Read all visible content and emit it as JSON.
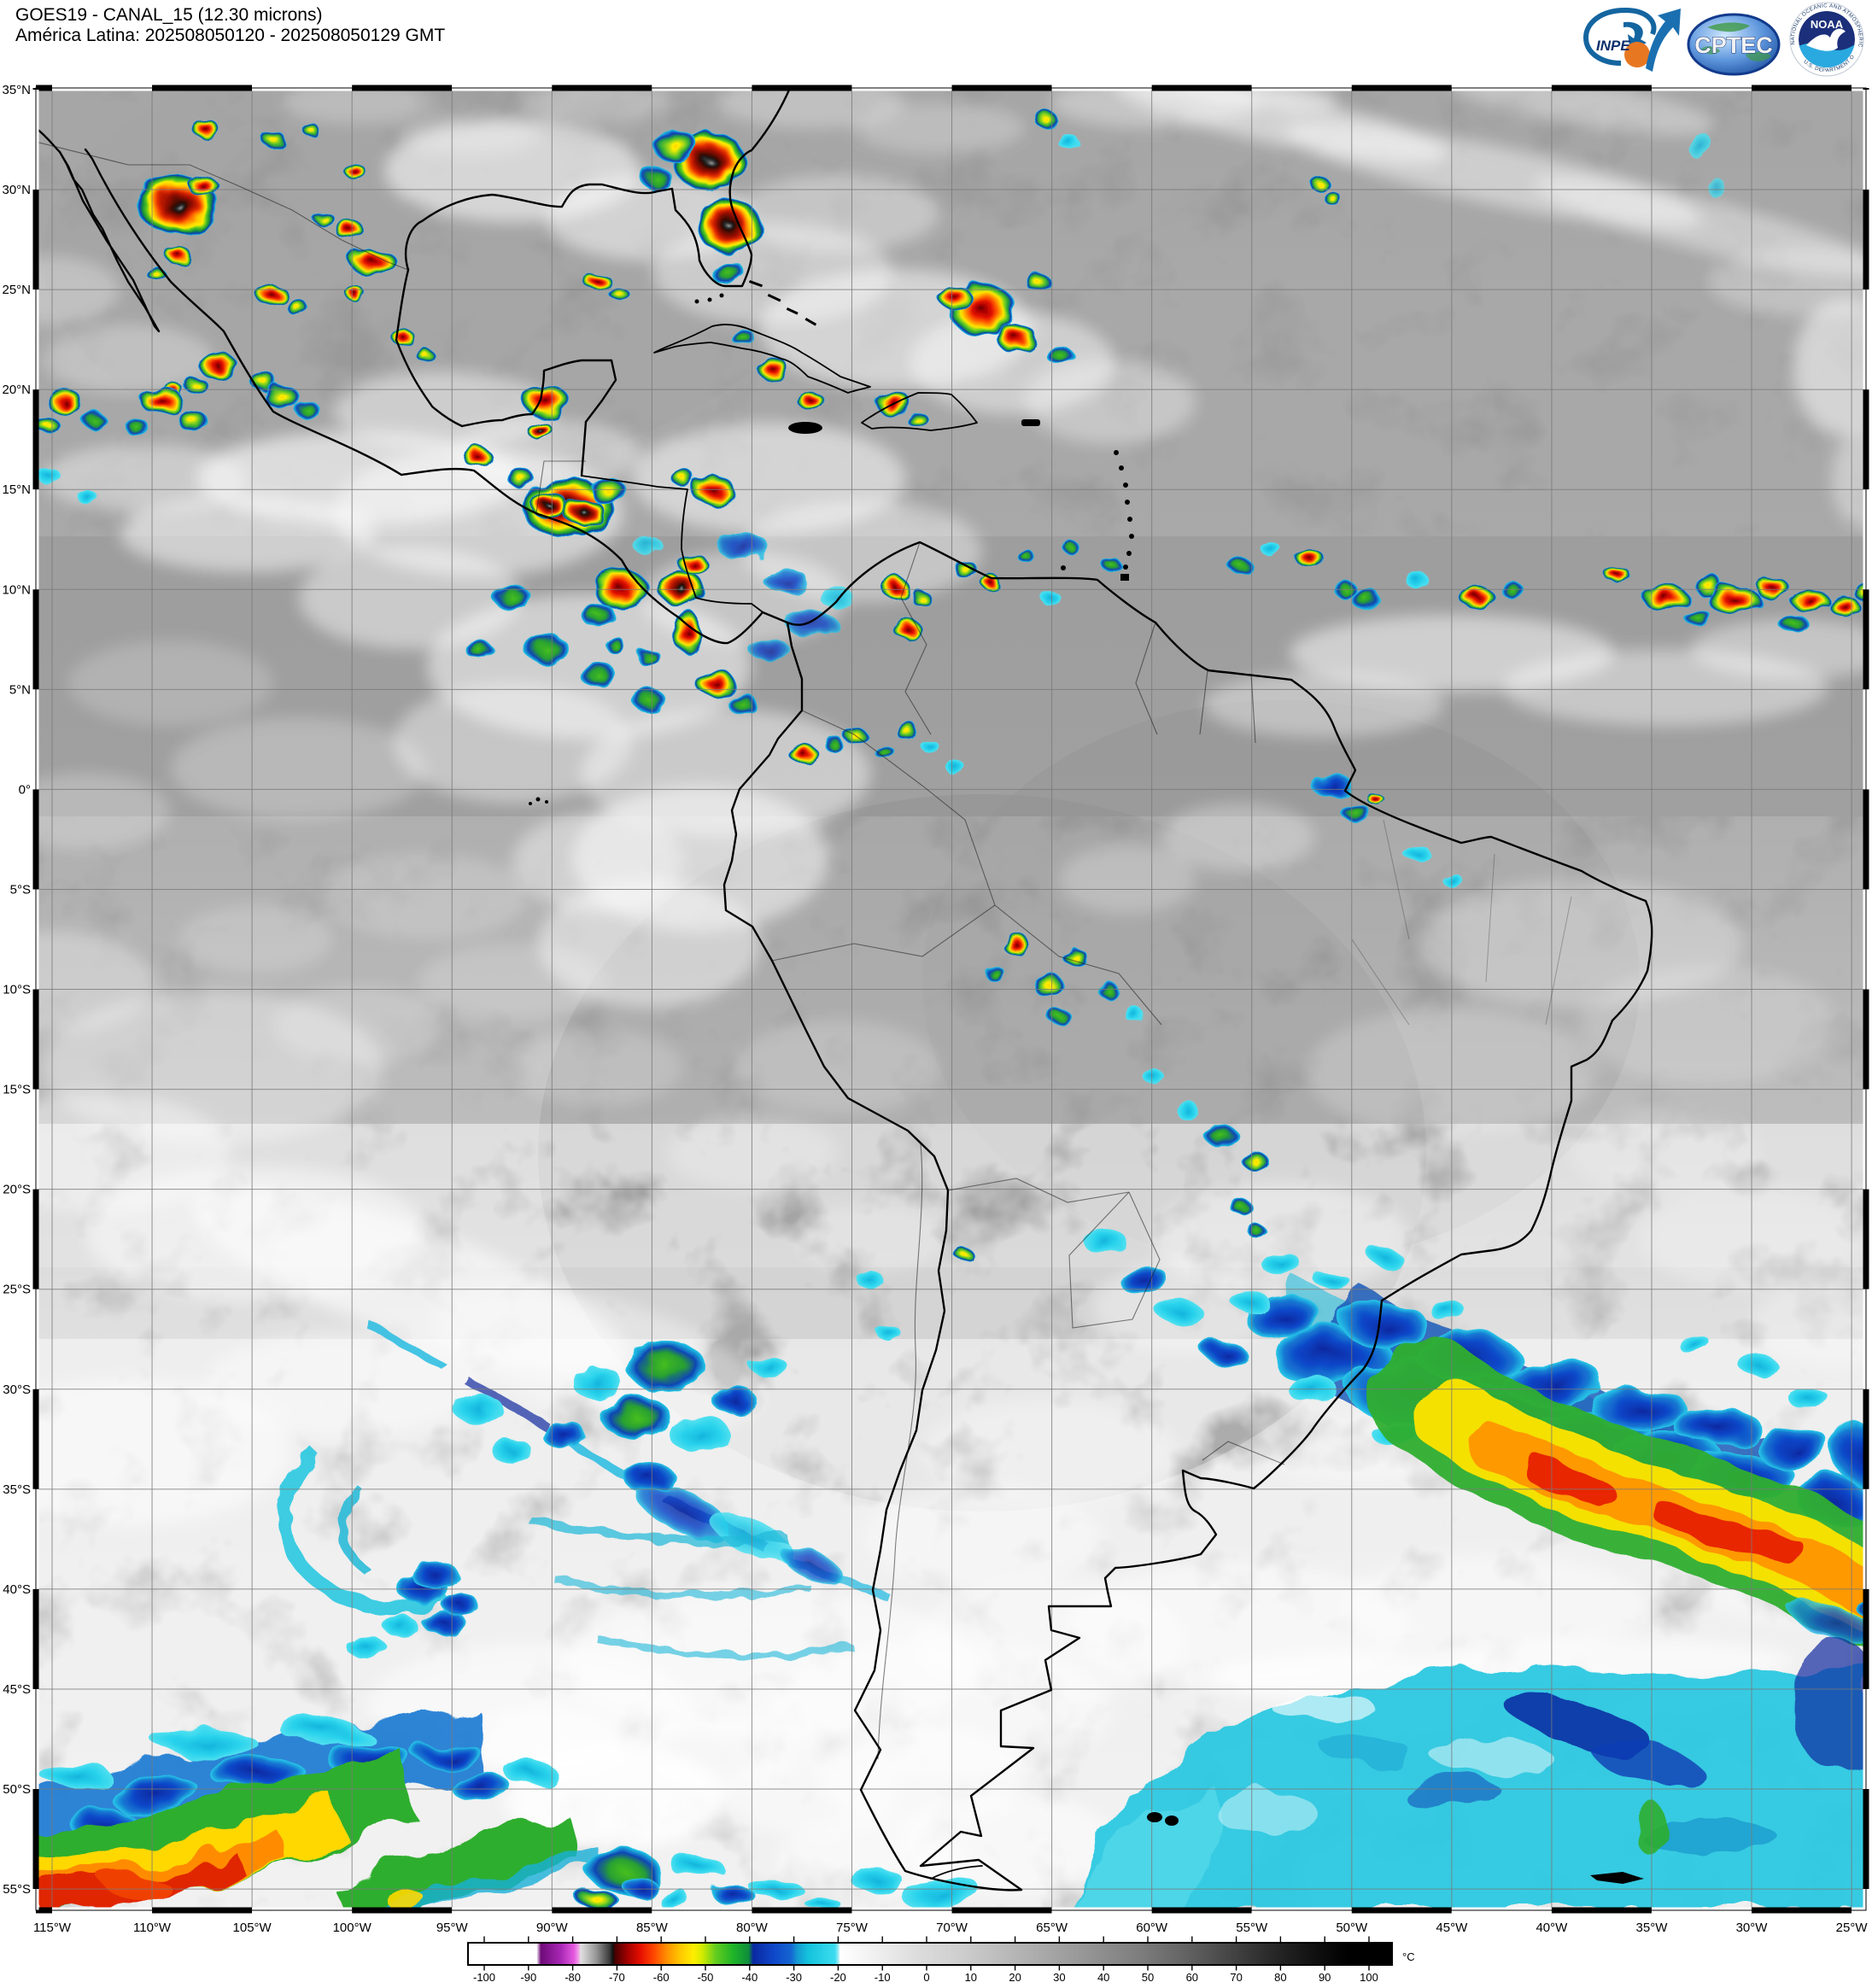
{
  "header": {
    "title": "GOES19 - CANAL_15 (12.30 microns)",
    "subtitle": "América Latina: 202508050120 - 202508050129 GMT"
  },
  "logos": {
    "inpe": {
      "label": "INPE"
    },
    "cptec": {
      "label": "CPTEC"
    },
    "noaa": {
      "label": "NOAA",
      "ring_text_top": "NATIONAL OCEANIC AND ATMOSPHERIC ADMINISTRATION",
      "ring_text_bottom": "U.S. DEPARTMENT OF COMMERCE"
    }
  },
  "map": {
    "lat_labels": [
      "35°N",
      "30°N",
      "25°N",
      "20°N",
      "15°N",
      "10°N",
      "5°N",
      "0°",
      "5°S",
      "10°S",
      "15°S",
      "20°S",
      "25°S",
      "30°S",
      "35°S",
      "40°S",
      "45°S",
      "50°S",
      "55°S"
    ],
    "lon_labels": [
      "115°W",
      "110°W",
      "105°W",
      "100°W",
      "95°W",
      "90°W",
      "85°W",
      "80°W",
      "75°W",
      "70°W",
      "65°W",
      "60°W",
      "55°W",
      "50°W",
      "45°W",
      "40°W",
      "35°W",
      "30°W",
      "25°W"
    ]
  },
  "colorbar": {
    "unit": "°C",
    "ticks": [
      "-100",
      "-90",
      "-80",
      "-70",
      "-60",
      "-50",
      "-40",
      "-30",
      "-20",
      "-10",
      "0",
      "10",
      "20",
      "30",
      "40",
      "50",
      "60",
      "70",
      "80",
      "90",
      "100"
    ],
    "palette": [
      {
        "t": -104,
        "c": "#ffffff"
      },
      {
        "t": -88.5,
        "c": "#ffffff"
      },
      {
        "t": -87.5,
        "c": "#6e0a78"
      },
      {
        "t": -83,
        "c": "#a828b4"
      },
      {
        "t": -80,
        "c": "#e65ae0"
      },
      {
        "t": -79,
        "c": "#f0a0e8"
      },
      {
        "t": -78.5,
        "c": "#e0e0e0"
      },
      {
        "t": -75,
        "c": "#969696"
      },
      {
        "t": -72,
        "c": "#3c3c3c"
      },
      {
        "t": -71.2,
        "c": "#0f0f0f"
      },
      {
        "t": -70.8,
        "c": "#460000"
      },
      {
        "t": -68,
        "c": "#a00000"
      },
      {
        "t": -65,
        "c": "#e60f00"
      },
      {
        "t": -62,
        "c": "#ff4600"
      },
      {
        "t": -59,
        "c": "#ff9100"
      },
      {
        "t": -56,
        "c": "#ffc800"
      },
      {
        "t": -53,
        "c": "#ffee00"
      },
      {
        "t": -51,
        "c": "#d2eb00"
      },
      {
        "t": -48,
        "c": "#64cd1e"
      },
      {
        "t": -44,
        "c": "#1eb428"
      },
      {
        "t": -40.5,
        "c": "#0f8c3c"
      },
      {
        "t": -39.5,
        "c": "#0a28a0"
      },
      {
        "t": -35,
        "c": "#0f46c8"
      },
      {
        "t": -31,
        "c": "#1464d2"
      },
      {
        "t": -29.5,
        "c": "#149ad2"
      },
      {
        "t": -27,
        "c": "#14c3dc"
      },
      {
        "t": -21,
        "c": "#3cdcf0"
      },
      {
        "t": -20.3,
        "c": "#96ebf5"
      },
      {
        "t": -19.8,
        "c": "#ffffff"
      },
      {
        "t": -12,
        "c": "#f0f0f0"
      },
      {
        "t": -2,
        "c": "#dcdcdc"
      },
      {
        "t": 8,
        "c": "#cdcdcd"
      },
      {
        "t": 18,
        "c": "#b9b9b9"
      },
      {
        "t": 28,
        "c": "#a5a5a5"
      },
      {
        "t": 38,
        "c": "#919191"
      },
      {
        "t": 48,
        "c": "#7d7d7d"
      },
      {
        "t": 58,
        "c": "#646464"
      },
      {
        "t": 68,
        "c": "#464646"
      },
      {
        "t": 78,
        "c": "#282828"
      },
      {
        "t": 88,
        "c": "#0f0f0f"
      },
      {
        "t": 95,
        "c": "#000000"
      },
      {
        "t": 105,
        "c": "#000000"
      }
    ]
  }
}
